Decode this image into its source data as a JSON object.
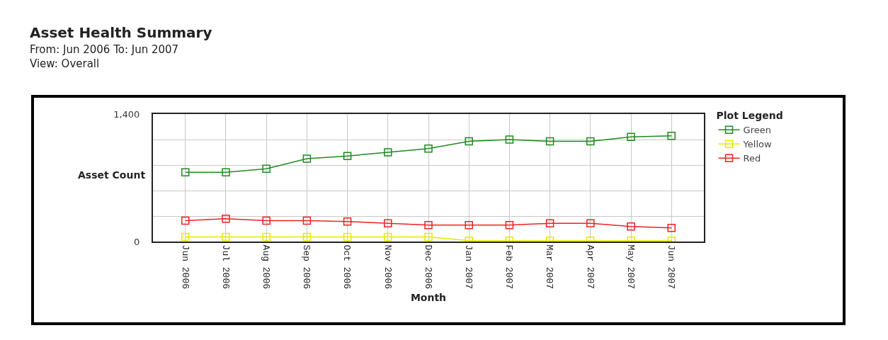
{
  "chart_data": {
    "type": "line",
    "title": "Asset Health Summary",
    "subtitle": "From: Jun 2006 To: Jun 2007\nView: Overall",
    "xlabel": "Month",
    "ylabel": "Asset Count",
    "legend_title": "Plot Legend",
    "categories": [
      "Jun 2006",
      "Jul 2006",
      "Aug 2006",
      "Sep 2006",
      "Oct 2006",
      "Nov 2006",
      "Dec 2006",
      "Jan 2007",
      "Feb 2007",
      "Mar 2007",
      "Apr 2007",
      "May 2007",
      "Jun 2007"
    ],
    "series": [
      {
        "name": "Green",
        "color": "#1f8a1f",
        "values": [
          760,
          760,
          800,
          910,
          940,
          980,
          1020,
          1100,
          1120,
          1100,
          1100,
          1150,
          1160
        ]
      },
      {
        "name": "Yellow",
        "color": "#e8e800",
        "values": [
          50,
          50,
          50,
          50,
          50,
          50,
          50,
          10,
          10,
          10,
          10,
          10,
          10
        ]
      },
      {
        "name": "Red",
        "color": "#ee2222",
        "values": [
          230,
          250,
          230,
          230,
          220,
          200,
          180,
          180,
          180,
          200,
          200,
          165,
          150
        ]
      }
    ],
    "ylim": [
      0,
      1400
    ],
    "yticks": [
      0,
      {
        "value": 280,
        "label": null
      },
      {
        "value": 560,
        "label": null
      },
      {
        "value": 840,
        "label": null
      },
      {
        "value": 1120,
        "label": null
      },
      {
        "value": 1400,
        "label": "1,400"
      }
    ],
    "grid": true,
    "legend": "top right",
    "marker": "square",
    "line_style": "solid"
  }
}
